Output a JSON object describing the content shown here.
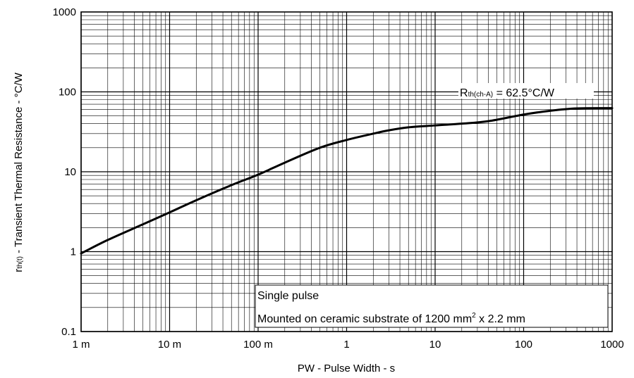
{
  "chart_data": {
    "type": "line",
    "xlabel": "PW - Pulse Width - s",
    "ylabel_main": "r",
    "ylabel_sub": "th(t)",
    "ylabel_rest": " - Transient Thermal Resistance - °C/W",
    "x_scale": "log",
    "y_scale": "log",
    "xlim": [
      0.001,
      1000
    ],
    "ylim": [
      0.1,
      1000
    ],
    "grid": true,
    "x_tick_values": [
      0.001,
      0.01,
      0.1,
      1,
      10,
      100,
      1000
    ],
    "x_tick_labels": [
      "1 m",
      "10 m",
      "100 m",
      "1",
      "10",
      "100",
      "1000"
    ],
    "y_tick_values": [
      0.1,
      1,
      10,
      100,
      1000
    ],
    "y_tick_labels": [
      "0.1",
      "1",
      "10",
      "100",
      "1000"
    ],
    "series": [
      {
        "x": [
          0.001,
          0.002,
          0.005,
          0.01,
          0.02,
          0.05,
          0.1,
          0.2,
          0.5,
          1,
          2,
          3,
          5,
          10,
          20,
          40,
          100,
          200,
          400,
          1000
        ],
        "y": [
          0.95,
          1.4,
          2.2,
          3.1,
          4.4,
          6.8,
          9.2,
          13,
          20,
          25,
          30,
          33,
          36,
          38,
          40,
          43,
          52,
          58,
          62,
          62.5
        ]
      }
    ],
    "annotations": {
      "rth_main": "R",
      "rth_sub": "th(ch-A)",
      "rth_rest": " = 62.5°C/W",
      "single_pulse": "Single pulse",
      "mounted_main": "Mounted on ceramic substrate of  1200 mm",
      "mounted_sup": "2",
      "mounted_rest": " x 2.2 mm"
    }
  }
}
